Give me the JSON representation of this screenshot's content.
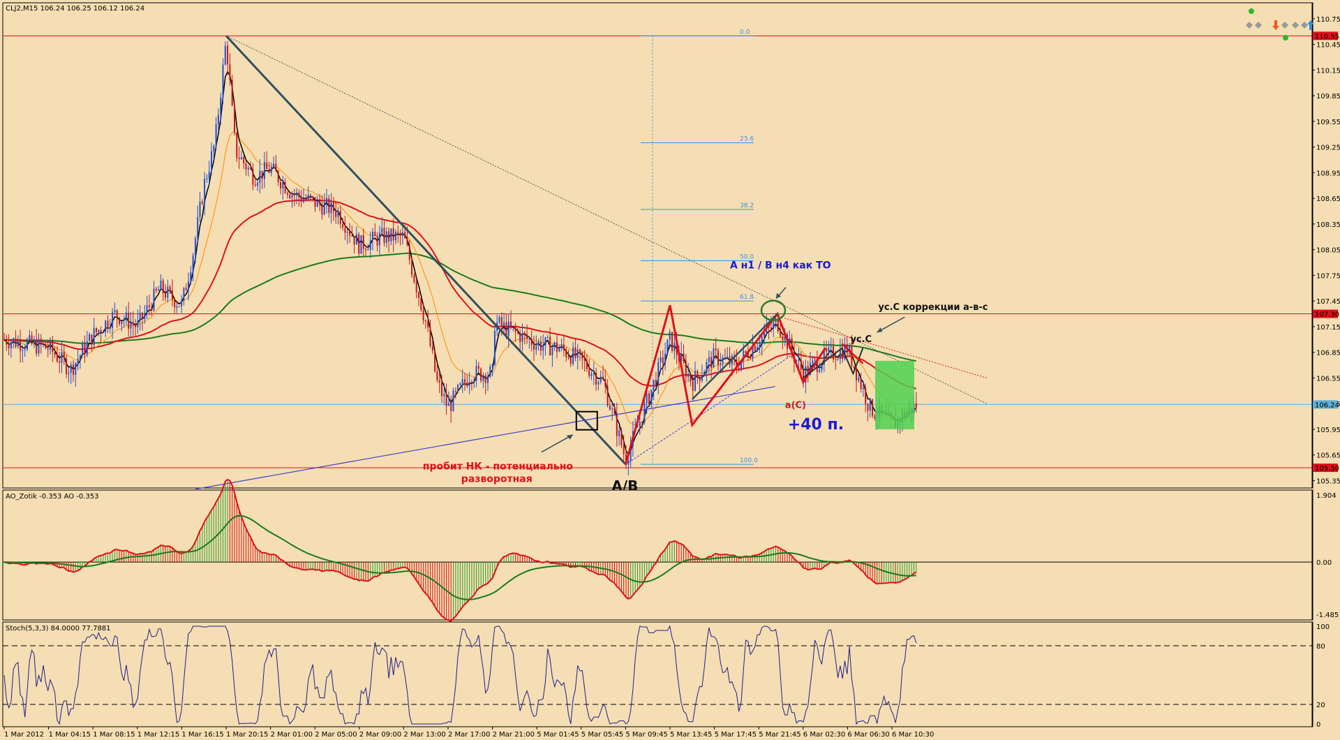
{
  "header": {
    "symbol_info": "CLJ2,M15  106.24 106.25 106.12 106.24",
    "ao_title": "AO_Zotik -0.353  AO -0.353",
    "stoch_title": "Stoch(5,3,3) 84.0000 77.7881"
  },
  "colors": {
    "background": "#f5deb3",
    "candle_up": "#1f4fd6",
    "candle_down": "#c0181c",
    "ema_fast": "#ff8c00",
    "ema_mid": "#e0101a",
    "ema_slow": "#1a7a1a",
    "price_line": "#000000",
    "zigzag_red": "#e0101a",
    "trend_line": "#2f4f5f",
    "fibo": "#3a8ee6",
    "ao_up": "#2e9e2e",
    "ao_down": "#d01010",
    "stoch": "#1e1e8c",
    "profit_zone": "#4fd14f",
    "level_line": "#e0101a",
    "current_price_line": "#5fb0d8"
  },
  "price_axis": {
    "ticks": [
      "110.75",
      "110.45",
      "110.15",
      "109.85",
      "109.55",
      "109.25",
      "108.95",
      "108.65",
      "108.35",
      "108.05",
      "107.75",
      "107.45",
      "107.15",
      "106.85",
      "106.55",
      "106.25",
      "105.95",
      "105.65",
      "105.35"
    ],
    "range": [
      105.28,
      110.92
    ]
  },
  "price_tags": [
    {
      "label": "110.55",
      "value": 110.55,
      "color": "#e0101a"
    },
    {
      "label": "107.30",
      "value": 107.3,
      "color": "#e0101a"
    },
    {
      "label": "106.24",
      "value": 106.24,
      "color": "#5fb0d8"
    },
    {
      "label": "105.50",
      "value": 105.5,
      "color": "#e0101a"
    }
  ],
  "ao_axis": {
    "ticks": [
      "1.904",
      "0.00",
      "-1.485"
    ],
    "range": [
      -1.6,
      2.0
    ]
  },
  "stoch_axis": {
    "ticks": [
      "100",
      "80",
      "20",
      "0"
    ],
    "levels": [
      80,
      20
    ]
  },
  "time_axis": {
    "labels": [
      "1 Mar 2012",
      "1 Mar 04:15",
      "1 Mar 08:15",
      "1 Mar 12:15",
      "1 Mar 16:15",
      "1 Mar 20:15",
      "2 Mar 01:00",
      "2 Mar 05:00",
      "2 Mar 09:00",
      "2 Mar 13:00",
      "2 Mar 17:00",
      "2 Mar 21:00",
      "5 Mar 01:45",
      "5 Mar 05:45",
      "5 Mar 09:45",
      "5 Mar 13:45",
      "5 Mar 17:45",
      "5 Mar 21:45",
      "6 Mar 02:30",
      "6 Mar 06:30",
      "6 Mar 10:30"
    ]
  },
  "fibo_levels": [
    {
      "label": "0.0",
      "value": 110.55
    },
    {
      "label": "23.6",
      "value": 109.3
    },
    {
      "label": "38.2",
      "value": 108.52
    },
    {
      "label": "50.0",
      "value": 107.92
    },
    {
      "label": "61.8",
      "value": 107.45
    },
    {
      "label": "100.0",
      "value": 105.54
    }
  ],
  "annotations": {
    "top_right": "А н1 / В н4 как ТО",
    "correction": "ус.С коррекции а-в-с",
    "us_c": "ус.С",
    "a_c": "а(С)",
    "profit": "+40 п.",
    "breakout_line1": "пробит НК - потенциально",
    "breakout_line2": "разворотная",
    "ab": "A/B"
  },
  "chart_data": {
    "type": "line",
    "title": "CLJ2,M15",
    "x_range": [
      "1 Mar 2012",
      "6 Mar 12:45"
    ],
    "series": [
      {
        "name": "CLJ2,M15",
        "points": [
          [
            "1 Mar 2012",
            107.0
          ],
          [
            "1 Mar 04:15",
            106.9
          ],
          [
            "1 Mar 06:15",
            106.65
          ],
          [
            "1 Mar 08:15",
            107.05
          ],
          [
            "1 Mar 10:15",
            107.3
          ],
          [
            "1 Mar 12:15",
            107.15
          ],
          [
            "1 Mar 14:15",
            107.6
          ],
          [
            "1 Mar 16:15",
            107.4
          ],
          [
            "1 Mar 17:15",
            108.0
          ],
          [
            "1 Mar 18:15",
            108.8
          ],
          [
            "1 Mar 19:15",
            109.3
          ],
          [
            "1 Mar 20:15",
            110.5
          ],
          [
            "1 Mar 21:15",
            109.2
          ],
          [
            "1 Mar 23:15",
            108.9
          ],
          [
            "2 Mar 01:00",
            109.0
          ],
          [
            "2 Mar 03:00",
            108.7
          ],
          [
            "2 Mar 05:00",
            108.6
          ],
          [
            "2 Mar 07:00",
            108.5
          ],
          [
            "2 Mar 09:00",
            108.1
          ],
          [
            "2 Mar 11:00",
            108.2
          ],
          [
            "2 Mar 13:00",
            108.2
          ],
          [
            "2 Mar 14:00",
            107.7
          ],
          [
            "2 Mar 15:00",
            107.2
          ],
          [
            "2 Mar 16:00",
            106.5
          ],
          [
            "2 Mar 17:00",
            106.2
          ],
          [
            "2 Mar 19:00",
            106.6
          ],
          [
            "2 Mar 21:00",
            106.6
          ],
          [
            "2 Mar 23:00",
            107.2
          ],
          [
            "5 Mar 01:45",
            106.95
          ],
          [
            "5 Mar 03:45",
            106.9
          ],
          [
            "5 Mar 05:45",
            106.75
          ],
          [
            "5 Mar 07:45",
            106.5
          ],
          [
            "5 Mar 09:45",
            105.6
          ],
          [
            "5 Mar 11:45",
            106.3
          ],
          [
            "5 Mar 13:45",
            107.0
          ],
          [
            "5 Mar 15:45",
            106.5
          ],
          [
            "5 Mar 17:45",
            106.8
          ],
          [
            "5 Mar 19:45",
            106.7
          ],
          [
            "5 Mar 21:45",
            107.0
          ],
          [
            "5 Mar 23:45",
            107.2
          ],
          [
            "6 Mar 02:30",
            106.6
          ],
          [
            "6 Mar 04:30",
            106.8
          ],
          [
            "6 Mar 06:30",
            106.9
          ],
          [
            "6 Mar 08:30",
            106.2
          ],
          [
            "6 Mar 10:30",
            106.0
          ],
          [
            "6 Mar 12:45",
            106.24
          ]
        ]
      }
    ],
    "indicators": [
      "AO_Zotik",
      "AO",
      "Stoch(5,3,3)"
    ],
    "ylim": [
      105.28,
      110.92
    ],
    "grid": false,
    "legend": "none"
  }
}
